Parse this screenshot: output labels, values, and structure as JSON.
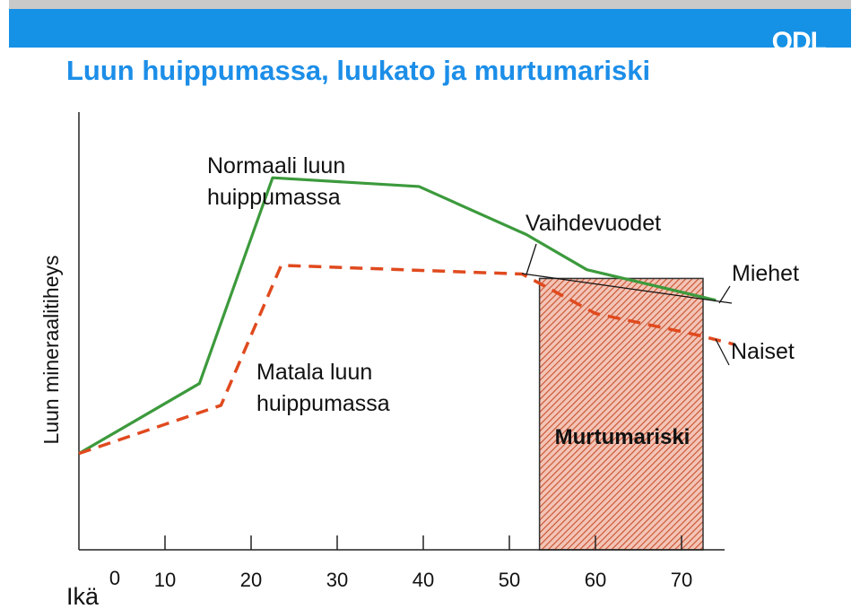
{
  "header": {
    "logo": "ODL"
  },
  "title": "Luun huippumassa, luukato ja murtumariski",
  "chart_data": {
    "type": "line",
    "ylabel": "Luun mineraalitiheys",
    "xlabel": "Ikä",
    "x_ticks": [
      0,
      10,
      20,
      30,
      40,
      50,
      60,
      70
    ],
    "xlim": [
      0,
      75
    ],
    "ylim": [
      0,
      100
    ],
    "series": [
      {
        "name": "Miehet",
        "color": "#3c9a3c",
        "style": "solid",
        "x": [
          0,
          14,
          22.5,
          39.5,
          52,
          59,
          74
        ],
        "y": [
          22,
          38,
          85,
          83,
          72,
          64,
          57
        ]
      },
      {
        "name": "Naiset",
        "color": "#e04a1e",
        "style": "dashed",
        "x": [
          0,
          16.5,
          23.5,
          51.5,
          60,
          72,
          76
        ],
        "y": [
          22,
          33,
          65,
          63,
          54,
          49,
          47
        ]
      }
    ],
    "annotations": {
      "normal_peak": [
        "Normaali luun",
        "huippumassa"
      ],
      "low_peak": [
        "Matala luun",
        "huippumassa"
      ],
      "menopause": "Vaihdevuodet",
      "risk_zone": {
        "label": "Murtumariski",
        "x_start": 53.5,
        "x_end": 72.5,
        "y_top": 62
      }
    }
  }
}
